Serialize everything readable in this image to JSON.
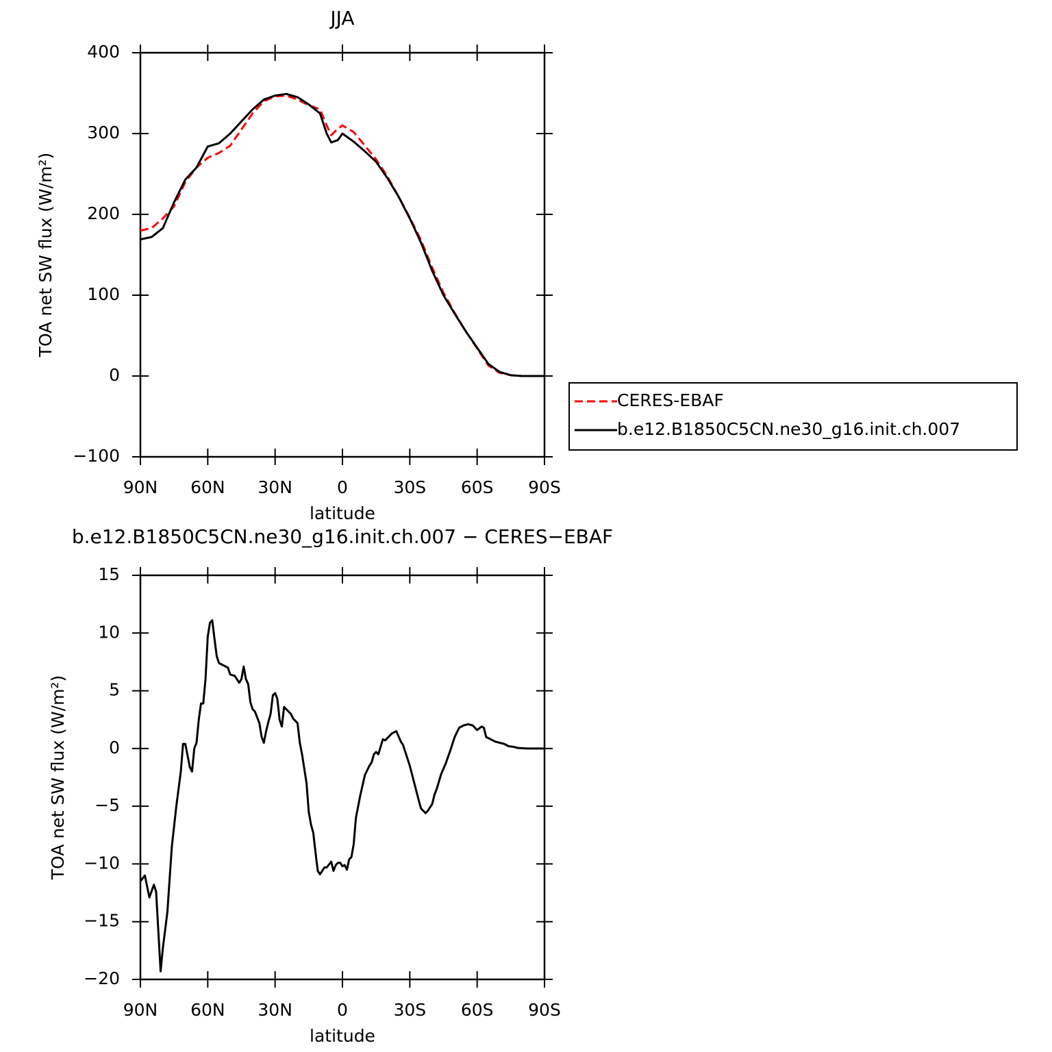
{
  "chart_data": [
    {
      "type": "line",
      "title": "JJA",
      "xlabel": "latitude",
      "ylabel": "TOA net SW flux (W/m²)",
      "x": [
        90,
        85,
        80,
        75,
        70,
        65,
        60,
        55,
        50,
        45,
        40,
        35,
        30,
        25,
        20,
        15,
        10,
        7,
        5,
        2,
        0,
        -5,
        -10,
        -15,
        -20,
        -25,
        -30,
        -35,
        -40,
        -45,
        -50,
        -55,
        -60,
        -65,
        -70,
        -75,
        -80,
        -85,
        -90
      ],
      "series": [
        {
          "name": "CERES-EBAF",
          "color": "#ff0000",
          "style": "dashed",
          "values": [
            180,
            183,
            195,
            210,
            240,
            258,
            270,
            276,
            285,
            305,
            325,
            340,
            346,
            347,
            342,
            335,
            330,
            310,
            298,
            306,
            310,
            302,
            285,
            268,
            247,
            222,
            196,
            168,
            134,
            103,
            78,
            55,
            34,
            13,
            4,
            1,
            0,
            0,
            0
          ]
        },
        {
          "name": "b.e12.B1850C5CN.ne30_g16.init.ch.007",
          "color": "#000000",
          "style": "solid",
          "values": [
            169,
            172,
            183,
            215,
            243,
            258,
            284,
            288,
            300,
            315,
            330,
            342,
            347,
            349,
            345,
            336,
            325,
            300,
            289,
            292,
            300,
            290,
            278,
            265,
            245,
            222,
            195,
            165,
            130,
            100,
            77,
            55,
            35,
            15,
            5,
            1,
            0,
            0,
            0
          ]
        }
      ],
      "xlim": [
        90,
        -90
      ],
      "xticks": [
        {
          "value": 90,
          "label": "90N"
        },
        {
          "value": 60,
          "label": "60N"
        },
        {
          "value": 30,
          "label": "30N"
        },
        0,
        {
          "value": -30,
          "label": "30S"
        },
        {
          "value": -60,
          "label": "60S"
        },
        {
          "value": -90,
          "label": "90S"
        }
      ],
      "ylim": [
        -100,
        400
      ],
      "yticks": [
        {
          "value": -100,
          "label": "−100"
        },
        0,
        100,
        200,
        300,
        400
      ],
      "legend": "outside-right"
    },
    {
      "type": "line",
      "title": "b.e12.B1850C5CN.ne30_g16.init.ch.007 − CERES−EBAF",
      "xlabel": "latitude",
      "ylabel": "TOA net SW flux (W/m²)",
      "x": [
        90,
        88,
        86,
        84,
        83,
        81,
        80,
        78,
        76,
        74,
        72,
        71,
        70,
        68,
        67,
        66,
        65,
        64,
        63,
        62,
        61,
        60,
        59,
        58,
        57,
        56,
        55,
        53,
        51,
        50,
        48,
        46,
        45,
        44,
        43,
        42,
        41,
        40,
        39,
        38,
        37,
        36,
        35,
        34,
        33,
        32,
        31,
        30,
        29,
        28,
        27,
        26,
        24,
        23,
        22,
        20,
        19,
        18,
        16,
        15,
        14,
        13,
        12,
        11,
        10,
        8,
        7,
        5,
        4,
        3,
        2,
        1,
        0,
        -1,
        -2,
        -3,
        -4,
        -5,
        -6,
        -8,
        -10,
        -12,
        -13,
        -14,
        -15,
        -16,
        -18,
        -19,
        -20,
        -22,
        -24,
        -26,
        -27,
        -30,
        -32,
        -34,
        -35,
        -37,
        -38,
        -40,
        -41,
        -42,
        -44,
        -46,
        -48,
        -50,
        -52,
        -54,
        -56,
        -58,
        -60,
        -62,
        -63,
        -64,
        -66,
        -68,
        -72,
        -74,
        -76,
        -78,
        -82,
        -86,
        -90
      ],
      "values": [
        -11.5,
        -11,
        -12.9,
        -11.8,
        -12.4,
        -19.3,
        -17.3,
        -14.2,
        -8.5,
        -5,
        -2,
        0.4,
        0.4,
        -1.6,
        -2,
        0,
        0.5,
        2.5,
        3.9,
        3.9,
        6,
        9.7,
        10.9,
        11.1,
        9.5,
        8,
        7.4,
        7.2,
        7,
        6.4,
        6.3,
        5.7,
        6,
        7.1,
        6,
        5.6,
        4,
        3.4,
        3.2,
        2.7,
        2.2,
        1,
        0.5,
        1.5,
        2.3,
        3,
        4.6,
        4.8,
        4.3,
        2.5,
        1.9,
        3.6,
        3.2,
        3,
        2.6,
        2.2,
        0.5,
        -0.5,
        -3,
        -5.5,
        -6.6,
        -7.3,
        -9,
        -10.6,
        -10.9,
        -10.3,
        -10.3,
        -9.8,
        -10.6,
        -10.1,
        -9.9,
        -9.9,
        -10.2,
        -10.1,
        -10.5,
        -9.6,
        -9.4,
        -8.3,
        -6,
        -4,
        -2.3,
        -1.5,
        -1.2,
        -0.5,
        -0.3,
        -0.5,
        0.8,
        0.7,
        0.9,
        1.3,
        1.5,
        0.6,
        0.3,
        -1.5,
        -3,
        -4.5,
        -5.2,
        -5.6,
        -5.4,
        -4.8,
        -4,
        -3.5,
        -2.2,
        -1.3,
        -0.2,
        1,
        1.8,
        2,
        2.1,
        2,
        1.6,
        1.9,
        1.8,
        1,
        0.8,
        0.6,
        0.4,
        0.2,
        0.15,
        0.05,
        0,
        0,
        0
      ],
      "color": "#000000",
      "xlim": [
        90,
        -90
      ],
      "xticks": [
        {
          "value": 90,
          "label": "90N"
        },
        {
          "value": 60,
          "label": "60N"
        },
        {
          "value": 30,
          "label": "30N"
        },
        0,
        {
          "value": -30,
          "label": "30S"
        },
        {
          "value": -60,
          "label": "60S"
        },
        {
          "value": -90,
          "label": "90S"
        }
      ],
      "ylim": [
        -20,
        15
      ],
      "yticks": [
        {
          "value": -20,
          "label": "−20"
        },
        {
          "value": -15,
          "label": "−15"
        },
        {
          "value": -10,
          "label": "−10"
        },
        {
          "value": -5,
          "label": "−5"
        },
        0,
        5,
        10,
        15
      ]
    }
  ]
}
